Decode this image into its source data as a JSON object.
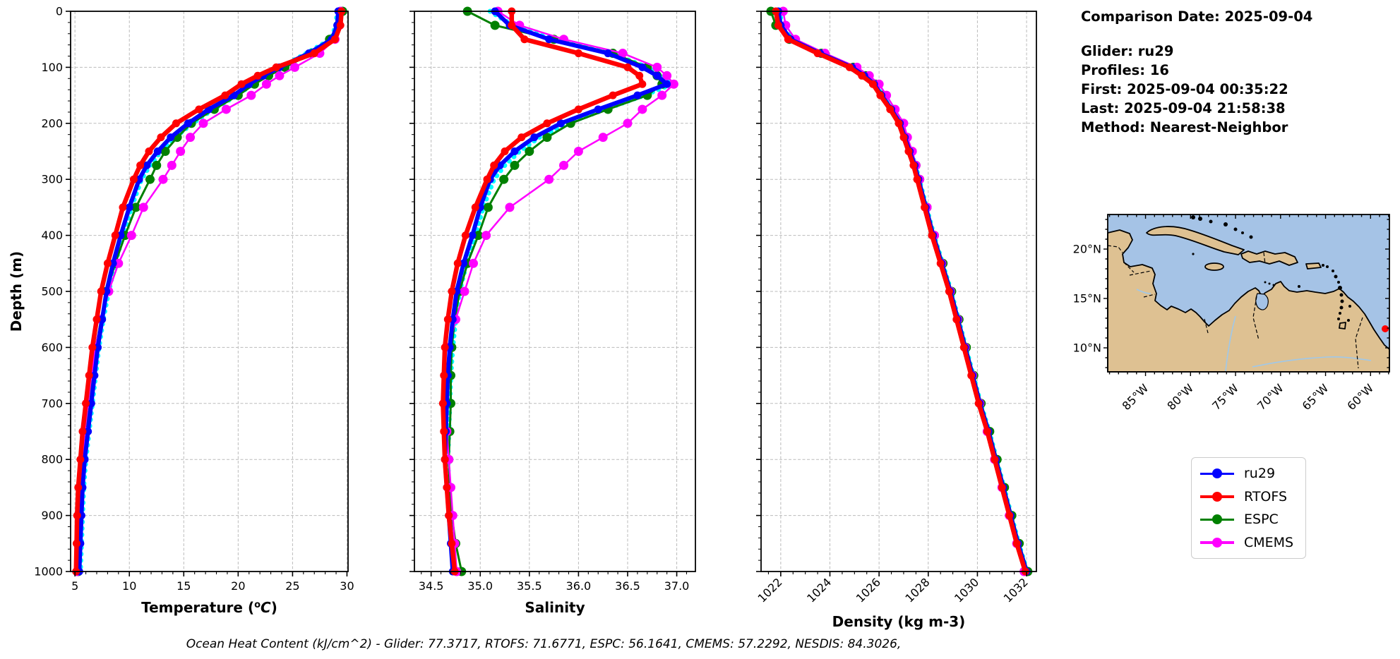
{
  "info_panel": {
    "comparison_date": "Comparison Date: 2025-09-04",
    "glider": "Glider: ru29",
    "profiles": "Profiles: 16",
    "first": "First: 2025-09-04 00:35:22",
    "last": "Last: 2025-09-04 21:58:38",
    "method": "Method: Nearest-Neighbor"
  },
  "footer": {
    "ohc_caption": "Ocean Heat Content (kJ/cm^2) - Glider: 77.3717,  RTOFS: 71.6771,  ESPC: 56.1641,  CMEMS: 57.2292,  NESDIS: 84.3026,"
  },
  "legend": {
    "border_color": "#cccccc",
    "items": [
      {
        "label": "ru29",
        "color": "#0000ff"
      },
      {
        "label": "RTOFS",
        "color": "#ff0000"
      },
      {
        "label": "ESPC",
        "color": "#008000"
      },
      {
        "label": "CMEMS",
        "color": "#ff00ff"
      }
    ]
  },
  "map": {
    "lat_tick_labels": [
      "20°N",
      "15°N",
      "10°N"
    ],
    "lon_tick_labels": [
      "85°W",
      "80°W",
      "75°W",
      "70°W",
      "65°W",
      "60°W"
    ],
    "ocean_color": "#a5c3e6",
    "land_color": "#dec192",
    "coast_color": "#000000",
    "river_color": "#9fc8ea",
    "marker": {
      "name": "glider-location-dot",
      "color": "#ff0000"
    }
  },
  "chart_data": {
    "type": "line",
    "description": "Glider vs model vertical profiles, depth 0-1000 m",
    "ylabel": "Depth (m)",
    "ylim": [
      0,
      1000
    ],
    "yticks": [
      0,
      100,
      200,
      300,
      400,
      500,
      600,
      700,
      800,
      900,
      1000
    ],
    "grid": true,
    "depths_m": [
      0,
      25,
      50,
      75,
      100,
      115,
      130,
      150,
      175,
      200,
      225,
      250,
      275,
      300,
      350,
      400,
      450,
      500,
      550,
      600,
      650,
      700,
      750,
      800,
      850,
      900,
      950,
      1000
    ],
    "charts": [
      {
        "id": "temperature",
        "xlabel_parts": {
          "pre": "Temperature (",
          "sup": "o",
          "italic": "C",
          "post": ")"
        },
        "xlim": [
          4.6,
          30.1
        ],
        "xticks": [
          5,
          10,
          15,
          20,
          25,
          30
        ],
        "xtick_labels": [
          "5",
          "10",
          "15",
          "20",
          "25",
          "30"
        ],
        "minor_step": 1,
        "rotate_labels": false,
        "show_depth_labels": true,
        "series": [
          {
            "name": "ru29",
            "color": "#0000ff",
            "z": 4,
            "in_legend": true,
            "values": [
              29.2,
              29.1,
              28.6,
              26.5,
              23.8,
              22.3,
              21.0,
              19.6,
              17.3,
              15.4,
              13.8,
              12.6,
              11.6,
              10.9,
              10.0,
              9.2,
              8.5,
              7.9,
              7.5,
              7.1,
              6.8,
              6.5,
              6.2,
              5.9,
              5.7,
              5.6,
              5.5,
              5.4
            ]
          },
          {
            "name": "RTOFS",
            "color": "#ff0000",
            "z": 5,
            "in_legend": true,
            "values": [
              29.5,
              29.4,
              28.9,
              27.0,
              23.5,
              21.8,
              20.3,
              18.8,
              16.4,
              14.3,
              12.9,
              11.8,
              11.0,
              10.4,
              9.4,
              8.7,
              8.0,
              7.4,
              7.0,
              6.6,
              6.3,
              6.0,
              5.7,
              5.5,
              5.3,
              5.2,
              5.15,
              5.1
            ]
          },
          {
            "name": "ESPC",
            "color": "#008000",
            "z": 2,
            "in_legend": true,
            "values": [
              29.6,
              29.2,
              28.4,
              26.8,
              24.3,
              22.8,
              21.5,
              20.0,
              17.8,
              15.7,
              14.4,
              13.3,
              12.5,
              11.9,
              10.6,
              9.6,
              8.7,
              7.9,
              7.4,
              6.9,
              6.6,
              6.4,
              6.0,
              5.7,
              5.6,
              5.5,
              5.4,
              5.3
            ]
          },
          {
            "name": "CMEMS",
            "color": "#ff00ff",
            "z": 3,
            "in_legend": true,
            "values": [
              29.4,
              29.3,
              28.9,
              27.5,
              25.2,
              23.8,
              22.6,
              21.2,
              18.9,
              16.8,
              15.6,
              14.7,
              13.9,
              13.1,
              11.3,
              10.2,
              9.0,
              8.1,
              7.4,
              6.9,
              6.5,
              6.2,
              5.9,
              5.7,
              5.5,
              5.3,
              5.25,
              5.2
            ]
          },
          {
            "name": "ru29 raw profiles",
            "color": "#00ffff",
            "z": 1,
            "in_legend": false,
            "values": [
              29.1,
              29.0,
              28.5,
              26.3,
              23.9,
              22.5,
              21.3,
              19.9,
              17.7,
              15.8,
              14.2,
              12.9,
              11.9,
              11.1,
              10.2,
              9.4,
              8.7,
              8.1,
              7.6,
              7.2,
              6.9,
              6.6,
              6.3,
              6.0,
              5.8,
              5.7,
              5.6,
              5.5
            ]
          }
        ]
      },
      {
        "id": "salinity",
        "xlabel": "Salinity",
        "xlim": [
          34.33,
          37.19
        ],
        "xticks": [
          34.5,
          35.0,
          35.5,
          36.0,
          36.5,
          37.0
        ],
        "xtick_labels": [
          "34.5",
          "35.0",
          "35.5",
          "36.0",
          "36.5",
          "37.0"
        ],
        "minor_step": 0.1,
        "rotate_labels": false,
        "show_depth_labels": false,
        "series": [
          {
            "name": "ru29",
            "color": "#0000ff",
            "z": 4,
            "in_legend": true,
            "values": [
              35.15,
              35.3,
              35.7,
              36.3,
              36.65,
              36.8,
              36.9,
              36.6,
              36.2,
              35.82,
              35.55,
              35.35,
              35.2,
              35.1,
              35.0,
              34.92,
              34.83,
              34.76,
              34.72,
              34.69,
              34.67,
              34.66,
              34.65,
              34.64,
              34.66,
              34.68,
              34.7,
              34.72
            ]
          },
          {
            "name": "RTOFS",
            "color": "#ff0000",
            "z": 5,
            "in_legend": true,
            "values": [
              35.32,
              35.32,
              35.45,
              36.0,
              36.5,
              36.62,
              36.65,
              36.35,
              36.0,
              35.68,
              35.42,
              35.25,
              35.14,
              35.07,
              34.95,
              34.85,
              34.77,
              34.71,
              34.67,
              34.64,
              34.63,
              34.62,
              34.63,
              34.64,
              34.66,
              34.68,
              34.71,
              34.74
            ]
          },
          {
            "name": "ESPC",
            "color": "#008000",
            "z": 2,
            "in_legend": true,
            "values": [
              34.87,
              35.15,
              35.75,
              36.35,
              36.7,
              36.8,
              36.85,
              36.7,
              36.3,
              35.92,
              35.68,
              35.5,
              35.35,
              35.24,
              35.08,
              34.98,
              34.87,
              34.79,
              34.74,
              34.71,
              34.7,
              34.7,
              34.69,
              34.68,
              34.69,
              34.71,
              34.75,
              34.81
            ]
          },
          {
            "name": "CMEMS",
            "color": "#ff00ff",
            "z": 3,
            "in_legend": true,
            "values": [
              35.18,
              35.4,
              35.85,
              36.45,
              36.8,
              36.9,
              36.97,
              36.85,
              36.65,
              36.5,
              36.25,
              36.0,
              35.85,
              35.7,
              35.3,
              35.06,
              34.93,
              34.84,
              34.75,
              34.68,
              34.66,
              34.65,
              34.66,
              34.68,
              34.7,
              34.72,
              34.74,
              34.76
            ]
          },
          {
            "name": "ru29 raw profiles",
            "color": "#00ffff",
            "z": 1,
            "in_legend": false,
            "values": [
              35.1,
              35.33,
              35.74,
              36.33,
              36.7,
              36.85,
              36.95,
              36.67,
              36.27,
              35.88,
              35.6,
              35.4,
              35.25,
              35.14,
              35.03,
              34.95,
              34.86,
              34.79,
              34.75,
              34.72,
              34.7,
              34.69,
              34.68,
              34.67,
              34.68,
              34.7,
              34.72,
              34.74
            ]
          }
        ]
      },
      {
        "id": "density",
        "xlabel": "Density (kg m-3)",
        "xlim": [
          1021.2,
          1032.4
        ],
        "xticks": [
          1022,
          1024,
          1026,
          1028,
          1030,
          1032
        ],
        "xtick_labels": [
          "1022",
          "1024",
          "1026",
          "1028",
          "1030",
          "1032"
        ],
        "minor_step": 0.5,
        "rotate_labels": true,
        "show_depth_labels": false,
        "series": [
          {
            "name": "ru29",
            "color": "#0000ff",
            "z": 4,
            "in_legend": true,
            "values": [
              1021.9,
              1022.0,
              1022.4,
              1023.6,
              1024.9,
              1025.4,
              1025.8,
              1026.1,
              1026.5,
              1026.85,
              1027.05,
              1027.25,
              1027.45,
              1027.6,
              1027.9,
              1028.2,
              1028.55,
              1028.9,
              1029.2,
              1029.5,
              1029.8,
              1030.1,
              1030.45,
              1030.75,
              1031.05,
              1031.35,
              1031.65,
              1032.0
            ]
          },
          {
            "name": "RTOFS",
            "color": "#ff0000",
            "z": 5,
            "in_legend": true,
            "values": [
              1021.8,
              1021.9,
              1022.3,
              1023.5,
              1024.8,
              1025.3,
              1025.75,
              1026.05,
              1026.45,
              1026.8,
              1027.0,
              1027.2,
              1027.4,
              1027.55,
              1027.85,
              1028.15,
              1028.5,
              1028.85,
              1029.15,
              1029.45,
              1029.75,
              1030.05,
              1030.4,
              1030.7,
              1031.0,
              1031.3,
              1031.6,
              1031.95
            ]
          },
          {
            "name": "ESPC",
            "color": "#008000",
            "z": 2,
            "in_legend": true,
            "values": [
              1021.6,
              1021.8,
              1022.35,
              1023.65,
              1024.95,
              1025.45,
              1025.85,
              1026.15,
              1026.55,
              1026.9,
              1027.1,
              1027.3,
              1027.5,
              1027.65,
              1027.95,
              1028.25,
              1028.6,
              1028.95,
              1029.25,
              1029.55,
              1029.85,
              1030.15,
              1030.5,
              1030.8,
              1031.1,
              1031.4,
              1031.7,
              1032.05
            ]
          },
          {
            "name": "CMEMS",
            "color": "#ff00ff",
            "z": 3,
            "in_legend": true,
            "values": [
              1022.1,
              1022.2,
              1022.6,
              1023.8,
              1025.1,
              1025.6,
              1026.0,
              1026.3,
              1026.65,
              1027.0,
              1027.15,
              1027.35,
              1027.5,
              1027.65,
              1027.95,
              1028.25,
              1028.55,
              1028.9,
              1029.2,
              1029.5,
              1029.8,
              1030.1,
              1030.4,
              1030.7,
              1031.0,
              1031.3,
              1031.6,
              1031.9
            ]
          },
          {
            "name": "ru29 raw profiles",
            "color": "#00ffff",
            "z": 1,
            "in_legend": false,
            "values": [
              1021.95,
              1022.05,
              1022.45,
              1023.63,
              1024.93,
              1025.43,
              1025.83,
              1026.13,
              1026.53,
              1026.88,
              1027.08,
              1027.28,
              1027.48,
              1027.63,
              1027.93,
              1028.23,
              1028.58,
              1028.93,
              1029.23,
              1029.53,
              1029.83,
              1030.13,
              1030.48,
              1030.78,
              1031.08,
              1031.38,
              1031.68,
              1032.02
            ]
          }
        ]
      }
    ]
  }
}
